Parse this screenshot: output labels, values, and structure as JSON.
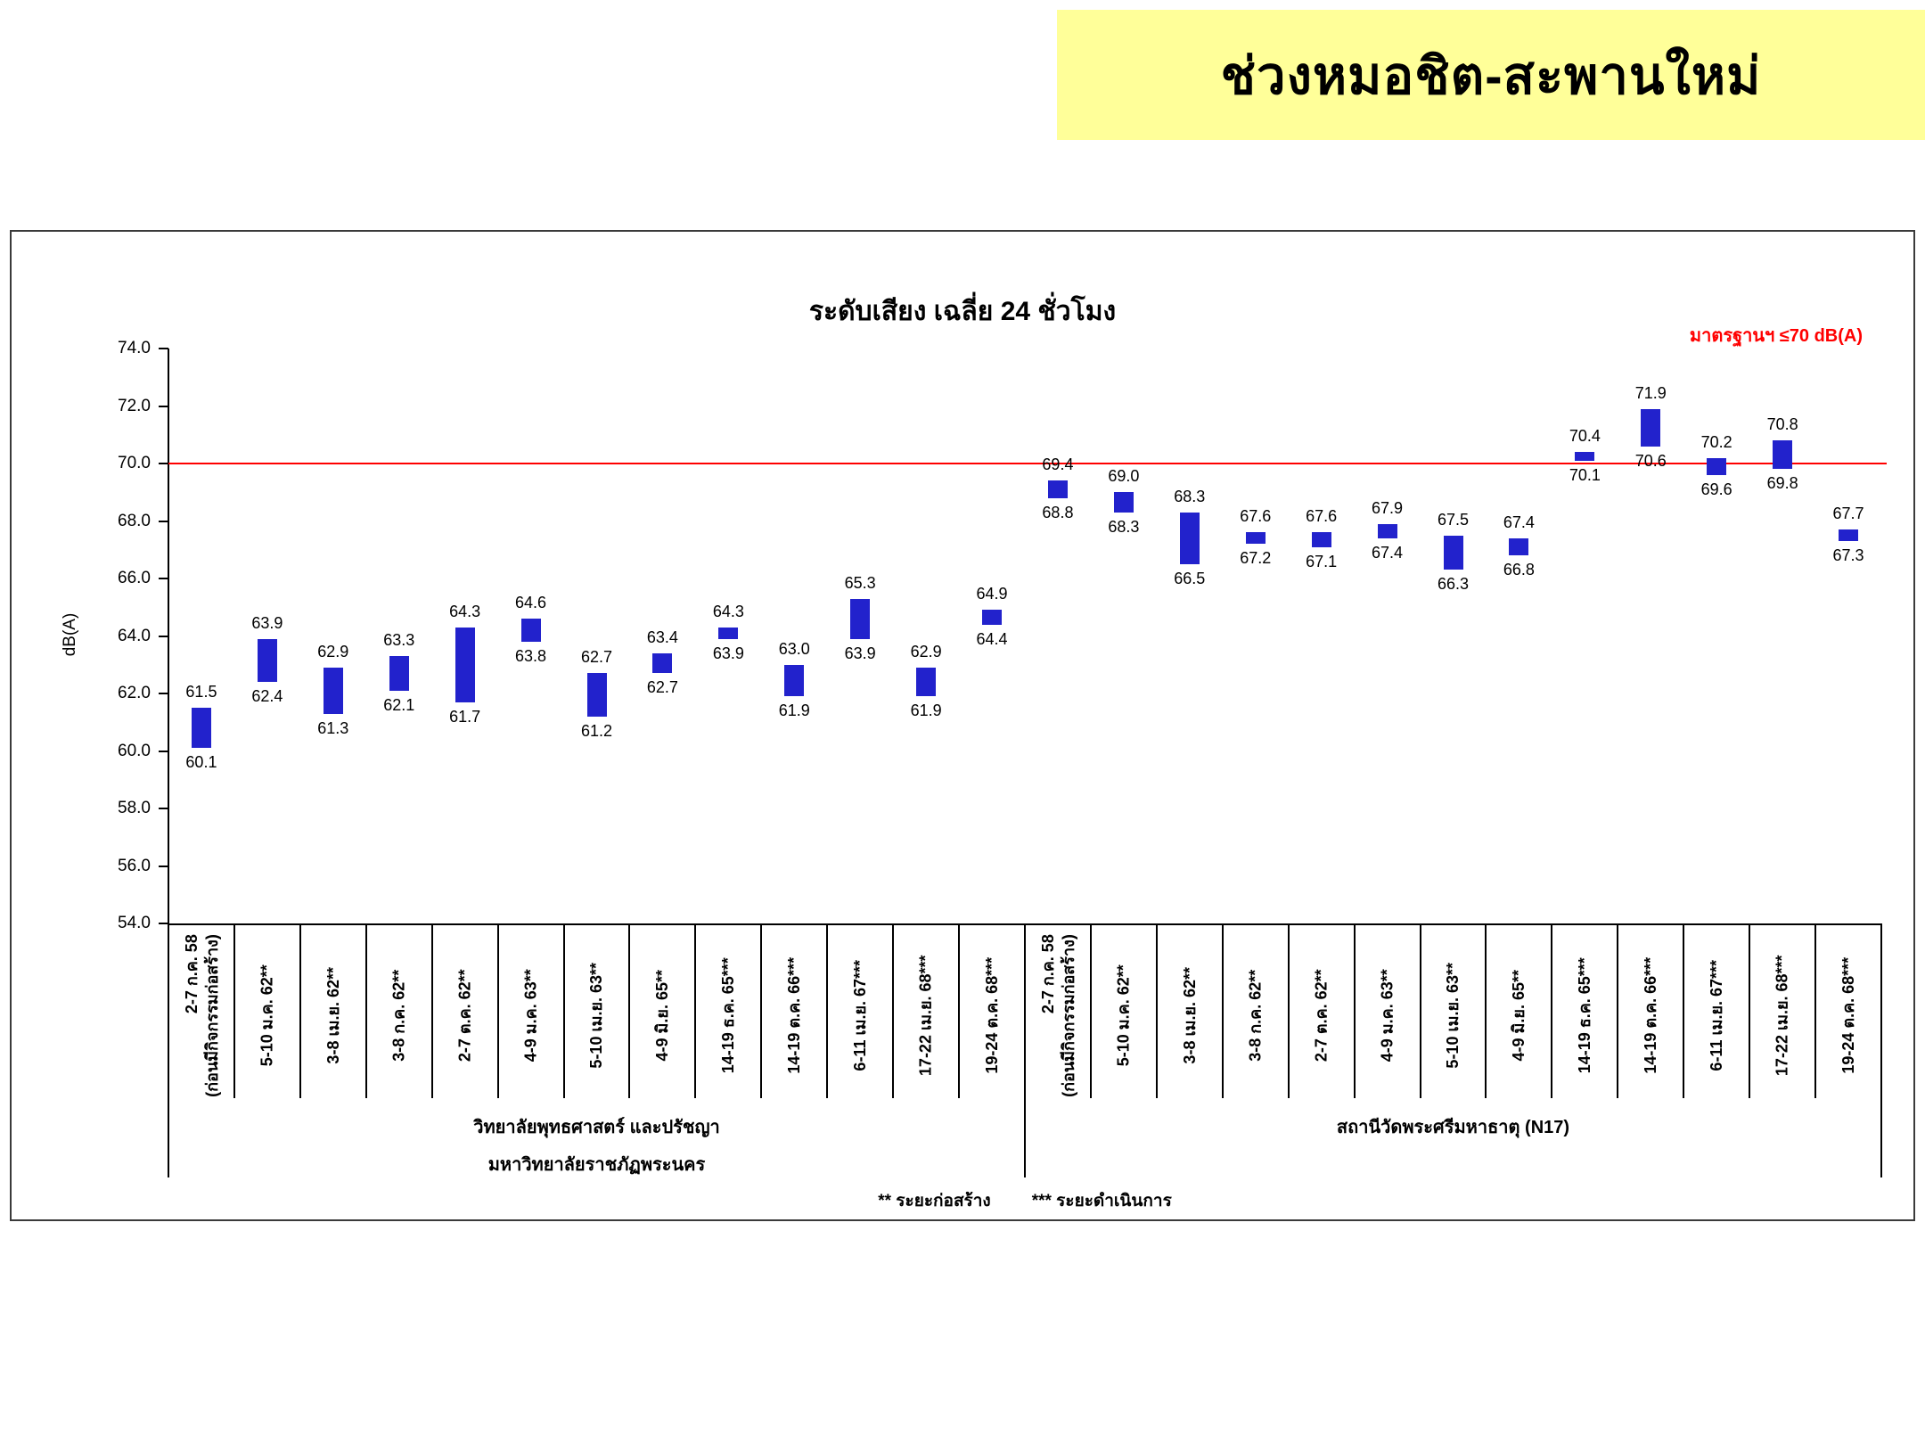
{
  "banner": {
    "title": "ช่วงหมอชิต-สะพานใหม่",
    "bg_color": "#FFFF99"
  },
  "chart_data": {
    "type": "bar",
    "variant": "floating-range",
    "title": "ระดับเสียง เฉลี่ย 24 ชั่วโมง",
    "ylabel": "dB(A)",
    "ylim": [
      54.0,
      74.0
    ],
    "ytick_step": 2.0,
    "grid": false,
    "legend": false,
    "standard_value": 70.0,
    "standard_label": "มาตรฐานฯ ≤70 dB(A)",
    "bar_color": "#2222CC",
    "standard_color": "#FF0000",
    "groups": [
      {
        "name_lines": [
          "วิทยาลัยพุทธศาสตร์ และปรัชญา",
          "มหาวิทยาลัยราชภัฏพระนคร"
        ],
        "points": [
          {
            "label_lines": [
              "2-7 ก.ค. 58",
              "(ก่อนมีกิจกรรมก่อสร้าง)"
            ],
            "low": 60.1,
            "high": 61.5
          },
          {
            "label_lines": [
              "5-10 ม.ค. 62**"
            ],
            "low": 62.4,
            "high": 63.9
          },
          {
            "label_lines": [
              "3-8 เม.ย. 62**"
            ],
            "low": 61.3,
            "high": 62.9
          },
          {
            "label_lines": [
              "3-8 ก.ค. 62**"
            ],
            "low": 62.1,
            "high": 63.3
          },
          {
            "label_lines": [
              "2-7 ต.ค. 62**"
            ],
            "low": 61.7,
            "high": 64.3
          },
          {
            "label_lines": [
              "4-9 ม.ค. 63**"
            ],
            "low": 63.8,
            "high": 64.6
          },
          {
            "label_lines": [
              "5-10 เม.ย. 63**"
            ],
            "low": 61.2,
            "high": 62.7
          },
          {
            "label_lines": [
              "4-9 มิ.ย. 65**"
            ],
            "low": 62.7,
            "high": 63.4
          },
          {
            "label_lines": [
              "14-19 ธ.ค. 65***"
            ],
            "low": 63.9,
            "high": 64.3
          },
          {
            "label_lines": [
              "14-19 ต.ค. 66***"
            ],
            "low": 61.9,
            "high": 63.0
          },
          {
            "label_lines": [
              "6-11 เม.ย. 67***"
            ],
            "low": 63.9,
            "high": 65.3
          },
          {
            "label_lines": [
              "17-22 เม.ย. 68***"
            ],
            "low": 61.9,
            "high": 62.9
          },
          {
            "label_lines": [
              "19-24 ต.ค. 68***"
            ],
            "low": 64.4,
            "high": 64.9
          }
        ]
      },
      {
        "name_lines": [
          "สถานีวัดพระศรีมหาธาตุ (N17)"
        ],
        "points": [
          {
            "label_lines": [
              "2-7 ก.ค. 58",
              "(ก่อนมีกิจกรรมก่อสร้าง)"
            ],
            "low": 68.8,
            "high": 69.4
          },
          {
            "label_lines": [
              "5-10 ม.ค. 62**"
            ],
            "low": 68.3,
            "high": 69.0
          },
          {
            "label_lines": [
              "3-8 เม.ย. 62**"
            ],
            "low": 66.5,
            "high": 68.3
          },
          {
            "label_lines": [
              "3-8 ก.ค. 62**"
            ],
            "low": 67.2,
            "high": 67.6
          },
          {
            "label_lines": [
              "2-7 ต.ค. 62**"
            ],
            "low": 67.1,
            "high": 67.6
          },
          {
            "label_lines": [
              "4-9 ม.ค. 63**"
            ],
            "low": 67.4,
            "high": 67.9
          },
          {
            "label_lines": [
              "5-10 เม.ย. 63**"
            ],
            "low": 66.3,
            "high": 67.5
          },
          {
            "label_lines": [
              "4-9 มิ.ย. 65**"
            ],
            "low": 66.8,
            "high": 67.4
          },
          {
            "label_lines": [
              "14-19 ธ.ค. 65***"
            ],
            "low": 70.1,
            "high": 70.4
          },
          {
            "label_lines": [
              "14-19 ต.ค. 66***"
            ],
            "low": 70.6,
            "high": 71.9
          },
          {
            "label_lines": [
              "6-11 เม.ย. 67***"
            ],
            "low": 69.6,
            "high": 70.2
          },
          {
            "label_lines": [
              "17-22 เม.ย. 68***"
            ],
            "low": 69.8,
            "high": 70.8
          },
          {
            "label_lines": [
              "19-24 ต.ค. 68***"
            ],
            "low": 67.3,
            "high": 67.7
          }
        ]
      }
    ]
  },
  "footnote": {
    "construction": "** ระยะก่อสร้าง",
    "operation": "*** ระยะดำเนินการ"
  }
}
